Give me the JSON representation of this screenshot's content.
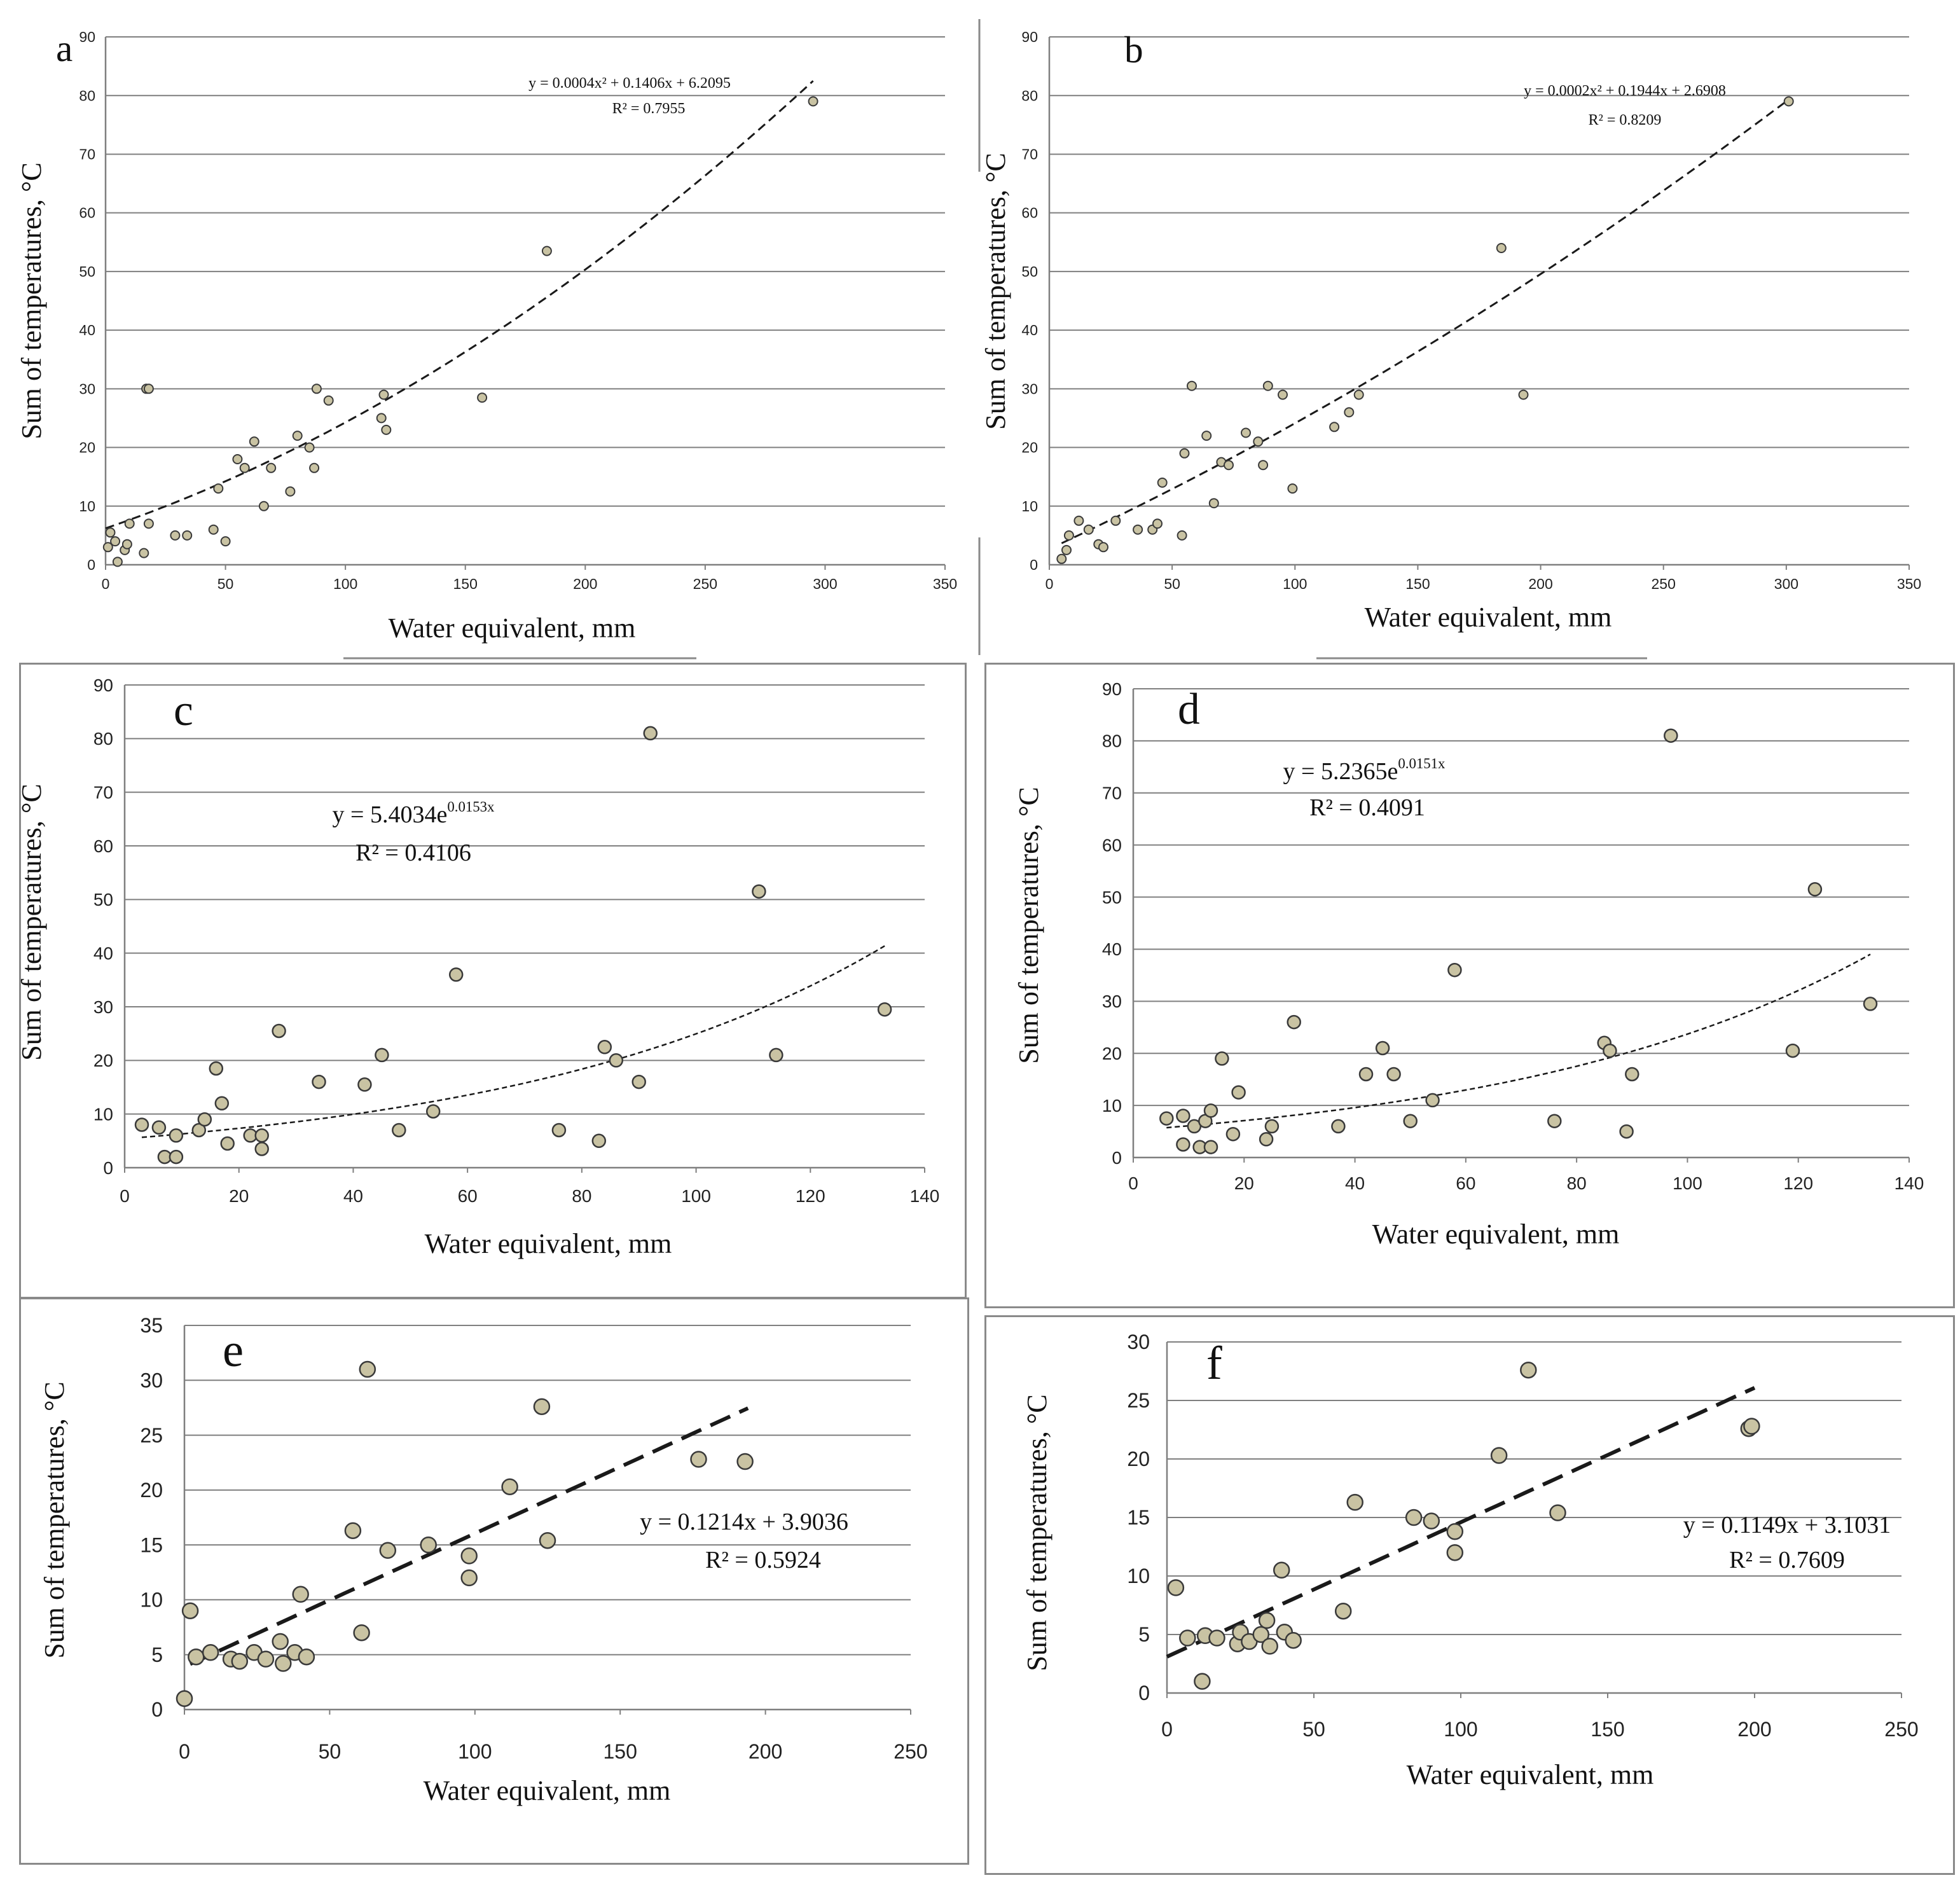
{
  "figure": {
    "panels_count": 6,
    "colors": {
      "grid": "#7f7f7f",
      "axis": "#7f7f7f",
      "marker_fill": "#c9c3a3",
      "marker_stroke": "#3a3a3a",
      "trend": "#1a1a1a",
      "text": "#111111",
      "tick_text": "#222222"
    }
  },
  "chart_data": [
    {
      "id": "a",
      "panel_label": "a",
      "type": "scatter",
      "xlabel": "Water equivalent,  mm",
      "ylabel": "Sum of temperatures, °C",
      "xlim": [
        0,
        350
      ],
      "ylim": [
        0,
        90
      ],
      "xticks": [
        "0",
        "50",
        "100",
        "150",
        "200",
        "250",
        "300",
        "350"
      ],
      "yticks": [
        "0",
        "10",
        "20",
        "30",
        "40",
        "50",
        "60",
        "70",
        "80",
        "90"
      ],
      "x": [
        1,
        2,
        4,
        5,
        8,
        9,
        10,
        16,
        17,
        18,
        18,
        29,
        34,
        45,
        47,
        50,
        55,
        58,
        62,
        66,
        69,
        77,
        80,
        85,
        87,
        88,
        93,
        115,
        116,
        117,
        157,
        184,
        295
      ],
      "y": [
        3,
        5.5,
        4,
        0.5,
        2.5,
        3.5,
        7,
        2,
        30,
        30,
        7,
        5,
        5,
        6,
        13,
        4,
        18,
        16.5,
        21,
        10,
        16.5,
        12.5,
        22,
        20,
        16.5,
        30,
        28,
        25,
        29,
        23,
        28.5,
        53.5,
        79
      ],
      "trend": {
        "kind": "poly2",
        "a": 0.0004,
        "b": 0.1406,
        "c": 6.2095,
        "x_range": [
          0,
          295
        ],
        "dash": "thick"
      },
      "equation": "y = 0.0004x² + 0.1406x + 6.2095",
      "r2": "R² = 0.7955",
      "grid": true
    },
    {
      "id": "b",
      "panel_label": "b",
      "type": "scatter",
      "xlabel": "Water equivalent,  mm",
      "ylabel": "Sum of temperatures, °C",
      "xlim": [
        0,
        350
      ],
      "ylim": [
        0,
        90
      ],
      "xticks": [
        "0",
        "50",
        "100",
        "150",
        "200",
        "250",
        "300",
        "350"
      ],
      "yticks": [
        "0",
        "10",
        "20",
        "30",
        "40",
        "50",
        "60",
        "70",
        "80",
        "90"
      ],
      "x": [
        5,
        7,
        8,
        12,
        16,
        20,
        22,
        27,
        36,
        42,
        44,
        46,
        54,
        55,
        58,
        64,
        67,
        70,
        73,
        80,
        85,
        87,
        89,
        95,
        99,
        116,
        122,
        126,
        184,
        193,
        301
      ],
      "y": [
        1,
        2.5,
        5,
        7.5,
        6,
        3.5,
        3,
        7.5,
        6,
        6,
        7,
        14,
        5,
        19,
        30.5,
        22,
        10.5,
        17.5,
        17,
        22.5,
        21,
        17,
        30.5,
        29,
        13,
        23.5,
        26,
        29,
        54,
        29,
        79
      ],
      "trend": {
        "kind": "poly2",
        "a": 0.0002,
        "b": 0.1944,
        "c": 2.6908,
        "x_range": [
          5,
          301
        ],
        "dash": "thick"
      },
      "equation": "y = 0.0002x² + 0.1944x + 2.6908",
      "r2": "R² = 0.8209",
      "grid": true
    },
    {
      "id": "c",
      "panel_label": "c",
      "type": "scatter",
      "xlabel": "Water equivalent,  mm",
      "ylabel": "Sum of temperatures, °C",
      "xlim": [
        0,
        140
      ],
      "ylim": [
        0,
        90
      ],
      "xticks": [
        "0",
        "20",
        "40",
        "60",
        "80",
        "100",
        "120",
        "140"
      ],
      "yticks": [
        "0",
        "10",
        "20",
        "30",
        "40",
        "50",
        "60",
        "70",
        "80",
        "90"
      ],
      "x": [
        3,
        6,
        7,
        9,
        9,
        13,
        14,
        16,
        17,
        18,
        22,
        24,
        24,
        27,
        34,
        42,
        45,
        48,
        54,
        58,
        76,
        83,
        84,
        86,
        90,
        92,
        111,
        114,
        133
      ],
      "y": [
        8,
        7.5,
        2,
        2,
        6,
        7,
        9,
        18.5,
        12,
        4.5,
        6,
        6,
        3.5,
        25.5,
        16,
        15.5,
        21,
        7,
        10.5,
        36,
        7,
        5,
        22.5,
        20,
        16,
        81,
        51.5,
        21,
        29.5
      ],
      "trend": {
        "kind": "exp",
        "a": 5.4034,
        "b": 0.0153,
        "x_range": [
          3,
          133
        ],
        "dash": "fine"
      },
      "equation": "y = 5.4034e",
      "equation_exponent": "0.0153x",
      "r2": "R² = 0.4106",
      "grid": true
    },
    {
      "id": "d",
      "panel_label": "d",
      "type": "scatter",
      "xlabel": "Water equivalent,  mm",
      "ylabel": "Sum of temperatures, °C",
      "xlim": [
        0,
        140
      ],
      "ylim": [
        0,
        90
      ],
      "xticks": [
        "0",
        "20",
        "40",
        "60",
        "80",
        "100",
        "120",
        "140"
      ],
      "yticks": [
        "0",
        "10",
        "20",
        "30",
        "40",
        "50",
        "60",
        "70",
        "80",
        "90"
      ],
      "x": [
        6,
        9,
        9,
        11,
        12,
        13,
        14,
        14,
        16,
        18,
        19,
        24,
        25,
        29,
        37,
        42,
        45,
        47,
        50,
        54,
        58,
        76,
        85,
        86,
        89,
        90,
        97,
        119,
        123,
        133
      ],
      "y": [
        7.5,
        8,
        2.5,
        6,
        2,
        7,
        9,
        2,
        19,
        4.5,
        12.5,
        3.5,
        6,
        26,
        6,
        16,
        21,
        16,
        7,
        11,
        36,
        7,
        22,
        20.5,
        5,
        16,
        81,
        20.5,
        51.5,
        29.5
      ],
      "trend": {
        "kind": "exp",
        "a": 5.2365,
        "b": 0.0151,
        "x_range": [
          6,
          133
        ],
        "dash": "fine"
      },
      "equation": "y = 5.2365e",
      "equation_exponent": "0.0151x",
      "r2": "R² = 0.4091",
      "grid": true
    },
    {
      "id": "e",
      "panel_label": "e",
      "type": "scatter",
      "xlabel": "Water equivalent,  mm",
      "ylabel": "Sum of temperatures, °C",
      "xlim": [
        0,
        250
      ],
      "ylim": [
        0,
        35
      ],
      "xticks": [
        "0",
        "50",
        "100",
        "150",
        "200",
        "250"
      ],
      "yticks": [
        "0",
        "5",
        "10",
        "15",
        "20",
        "25",
        "30",
        "35"
      ],
      "x": [
        0,
        2,
        4,
        9,
        16,
        19,
        24,
        28,
        33,
        34,
        38,
        40,
        42,
        58,
        61,
        63,
        70,
        84,
        98,
        98,
        112,
        123,
        125,
        177,
        193
      ],
      "y": [
        1,
        9,
        4.8,
        5.2,
        4.6,
        4.4,
        5.2,
        4.6,
        6.2,
        4.2,
        5.2,
        10.5,
        4.8,
        16.3,
        7,
        31,
        14.5,
        15,
        14,
        12,
        20.3,
        27.6,
        15.4,
        22.8,
        22.6
      ],
      "trend": {
        "kind": "linear",
        "a": 0.1214,
        "b": 3.9036,
        "x_range": [
          2,
          194
        ],
        "dash": "bold"
      },
      "equation": "y = 0.1214x + 3.9036",
      "r2": "R² = 0.5924",
      "grid": true
    },
    {
      "id": "f",
      "panel_label": "f",
      "type": "scatter",
      "xlabel": "Water equivalent,  mm",
      "ylabel": "Sum of temperatures, °C",
      "xlim": [
        0,
        250
      ],
      "ylim": [
        0,
        30
      ],
      "xticks": [
        "0",
        "50",
        "100",
        "150",
        "200",
        "250"
      ],
      "yticks": [
        "0",
        "5",
        "10",
        "15",
        "20",
        "25",
        "30"
      ],
      "x": [
        3,
        7,
        12,
        13,
        17,
        24,
        25,
        28,
        32,
        34,
        35,
        39,
        40,
        43,
        60,
        64,
        84,
        90,
        98,
        98,
        113,
        123,
        133,
        198,
        199
      ],
      "y": [
        9,
        4.7,
        1,
        4.9,
        4.7,
        4.2,
        5.2,
        4.4,
        5,
        6.2,
        4,
        10.5,
        5.2,
        4.5,
        7,
        16.3,
        15,
        14.7,
        13.8,
        12,
        20.3,
        27.6,
        15.4,
        22.6,
        22.8
      ],
      "trend": {
        "kind": "linear",
        "a": 0.1149,
        "b": 3.1031,
        "x_range": [
          0,
          200
        ],
        "dash": "bold"
      },
      "equation": "y = 0.1149x + 3.1031",
      "r2": "R² = 0.7609",
      "grid": true
    }
  ]
}
